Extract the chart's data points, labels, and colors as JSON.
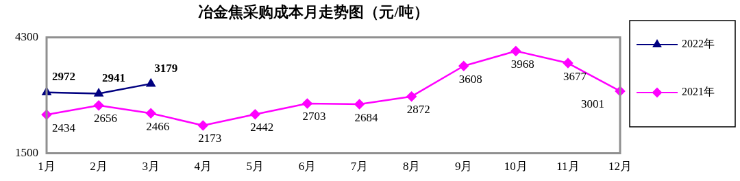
{
  "chart_data": {
    "type": "line",
    "title": "冶金焦采购成本月走势图（元/吨）",
    "categories": [
      "1月",
      "2月",
      "3月",
      "4月",
      "5月",
      "6月",
      "7月",
      "8月",
      "9月",
      "10月",
      "11月",
      "12月"
    ],
    "series": [
      {
        "name": "2022年",
        "color": "#000080",
        "marker": "triangle",
        "values": [
          2972,
          2941,
          3179,
          null,
          null,
          null,
          null,
          null,
          null,
          null,
          null,
          null
        ]
      },
      {
        "name": "2021年",
        "color": "#ff00ff",
        "marker": "diamond",
        "values": [
          2434,
          2656,
          2466,
          2173,
          2442,
          2703,
          2684,
          2872,
          3608,
          3968,
          3677,
          3001
        ]
      }
    ],
    "ylim": [
      1500,
      4300
    ],
    "yticks": [
      1500,
      4300
    ],
    "grid": false,
    "legend": "right",
    "data_labels": true
  }
}
